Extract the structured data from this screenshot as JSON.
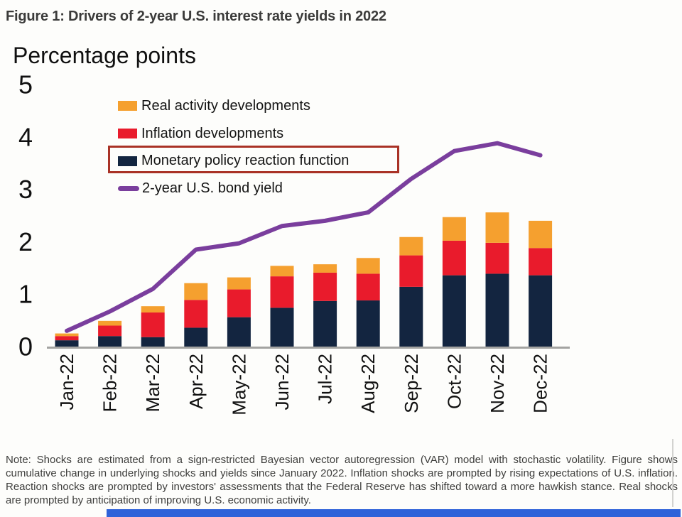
{
  "figure": {
    "title": "Figure 1: Drivers of 2-year U.S. interest rate yields in 2022",
    "axis_title": "Percentage points",
    "note": "Note: Shocks are estimated from a sign-restricted Bayesian vector autoregression (VAR) model with stochastic volatility. Figure shows cumulative change in underlying shocks and yields since January 2022. Inflation shocks are prompted by rising expectations of U.S. inflation. Reaction shocks are prompted by investors' assessments that the Federal Reserve has shifted toward a more hawkish stance. Real shocks are prompted by anticipation of improving U.S. economic activity."
  },
  "legend": {
    "items": [
      {
        "label": "Real activity developments",
        "color": "#f5a02f",
        "swatch": "box",
        "highlighted": false
      },
      {
        "label": "Inflation developments",
        "color": "#e91b2c",
        "swatch": "box",
        "highlighted": false
      },
      {
        "label": "Monetary policy reaction function",
        "color": "#132540",
        "swatch": "box",
        "highlighted": true
      },
      {
        "label": "2-year U.S. bond yield",
        "color": "#7a3e9d",
        "swatch": "line",
        "highlighted": false
      }
    ],
    "highlight_box_color": "#a93226"
  },
  "chart_data": {
    "type": "bar",
    "subtype": "stacked-bars-with-line-overlay",
    "title": "Figure 1: Drivers of 2-year U.S. interest rate yields in 2022",
    "ylabel": "Percentage points",
    "xlabel": "",
    "ylim": [
      0,
      5
    ],
    "yticks": [
      0,
      1,
      2,
      3,
      4,
      5
    ],
    "grid": false,
    "legend_position": "top-left-inside",
    "axis_color": "#a3a3a1",
    "categories": [
      "Jan-22",
      "Feb-22",
      "Mar-22",
      "Apr-22",
      "May-22",
      "Jun-22",
      "Jul-22",
      "Aug-22",
      "Sep-22",
      "Oct-22",
      "Nov-22",
      "Dec-22"
    ],
    "series": [
      {
        "name": "Monetary policy reaction function",
        "type": "bar-stack",
        "color": "#132540",
        "values": [
          0.12,
          0.2,
          0.18,
          0.36,
          0.56,
          0.74,
          0.87,
          0.88,
          1.14,
          1.36,
          1.39,
          1.36
        ]
      },
      {
        "name": "Inflation developments",
        "type": "bar-stack",
        "color": "#e91b2c",
        "values": [
          0.08,
          0.2,
          0.47,
          0.53,
          0.53,
          0.6,
          0.54,
          0.51,
          0.6,
          0.66,
          0.59,
          0.52
        ]
      },
      {
        "name": "Real activity developments",
        "type": "bar-stack",
        "color": "#f5a02f",
        "values": [
          0.05,
          0.09,
          0.12,
          0.32,
          0.23,
          0.2,
          0.16,
          0.3,
          0.35,
          0.45,
          0.58,
          0.52
        ]
      },
      {
        "name": "2-year U.S. bond yield",
        "type": "line",
        "color": "#7a3e9d",
        "values": [
          0.3,
          0.67,
          1.1,
          1.85,
          1.97,
          2.3,
          2.4,
          2.56,
          3.2,
          3.73,
          3.88,
          3.65
        ]
      }
    ],
    "bar_totals": [
      0.25,
      0.49,
      0.77,
      1.21,
      1.32,
      1.54,
      1.57,
      1.69,
      2.09,
      2.47,
      2.56,
      2.4
    ]
  }
}
